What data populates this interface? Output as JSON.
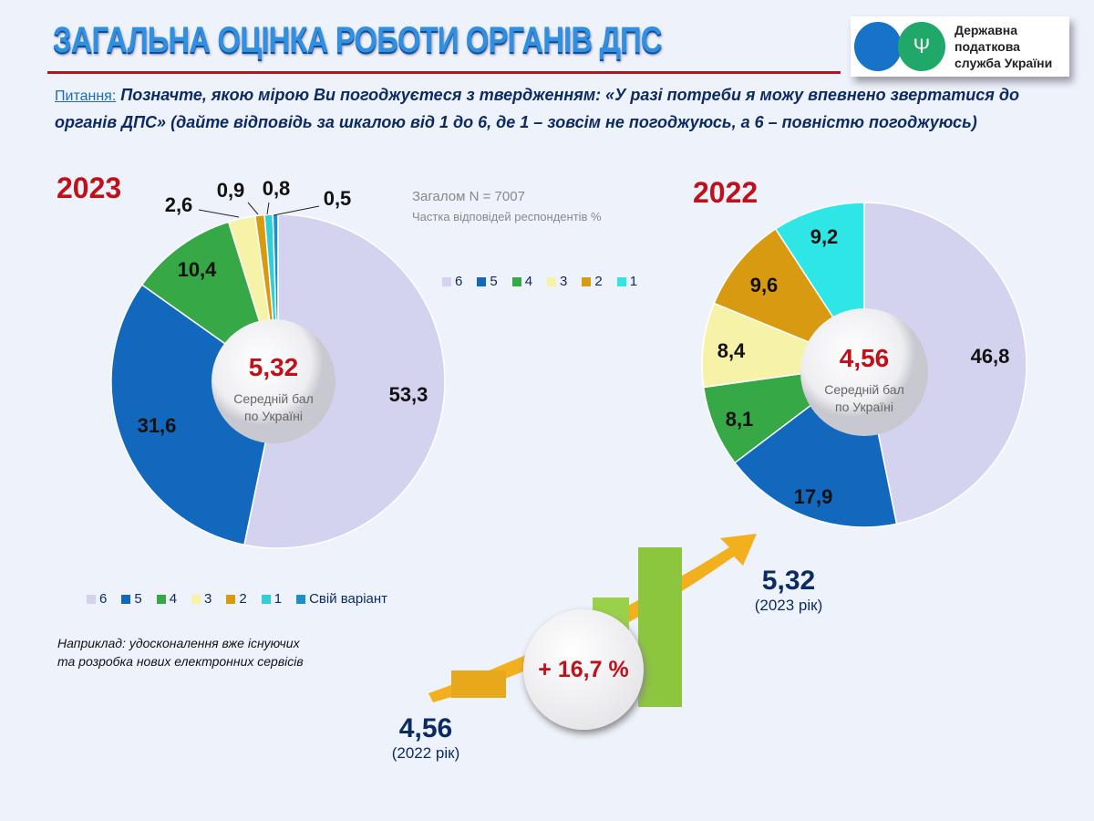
{
  "header": {
    "title": "ЗАГАЛЬНА ОЦІНКА РОБОТИ ОРГАНІВ ДПС",
    "logo_text": [
      "Державна",
      "податкова",
      "служба України"
    ]
  },
  "question": {
    "label": "Питання:",
    "text": " Позначте, якою мірою Ви погоджуєтеся з твердженням: «У разі потреби я можу впевнено звертатися до органів ДПС» (дайте відповідь за шкалою від 1 до 6, де 1 – зовсім не погоджуюсь, а 6 – повністю погоджуюсь)"
  },
  "note": {
    "total": "Загалом N = 7007",
    "share": "Частка відповідей респондентів %"
  },
  "chart_data": [
    {
      "type": "pie",
      "title": "2023",
      "donut_center_value": "5,32",
      "donut_center_label": "Середній бал по Україні",
      "categories": [
        "6",
        "5",
        "4",
        "3",
        "2",
        "1",
        "Свій варіант"
      ],
      "values": [
        53.3,
        31.6,
        10.4,
        2.6,
        0.9,
        0.8,
        0.5
      ],
      "labels": [
        "53,3",
        "31,6",
        "10,4",
        "2,6",
        "0,9",
        "0,8",
        "0,5"
      ],
      "colors": [
        "#d3d3f0",
        "#1268bd",
        "#37a846",
        "#f6f3a8",
        "#d89a10",
        "#2fcfd8",
        "#1a90cc"
      ],
      "legend_placement": "bottom"
    },
    {
      "type": "pie",
      "title": "2022",
      "donut_center_value": "4,56",
      "donut_center_label": "Середній бал по Україні",
      "categories": [
        "6",
        "5",
        "4",
        "3",
        "2",
        "1"
      ],
      "values": [
        46.8,
        17.9,
        8.1,
        8.4,
        9.6,
        9.2
      ],
      "labels": [
        "46,8",
        "17,9",
        "8,1",
        "8,4",
        "9,6",
        "9,2"
      ],
      "colors": [
        "#d3d3f0",
        "#1268bd",
        "#37a846",
        "#f6f3a8",
        "#d89a10",
        "#2ee6e6"
      ],
      "legend_placement": "left"
    }
  ],
  "comparison": {
    "value_2023": "5,32",
    "label_2023": "(2023 рік)",
    "value_2022": "4,56",
    "label_2022": "(2022 рік)",
    "growth": "+ 16,7 %"
  },
  "example": [
    "Наприклад: удосконалення вже існуючих",
    "та розробка нових електронних сервісів"
  ]
}
